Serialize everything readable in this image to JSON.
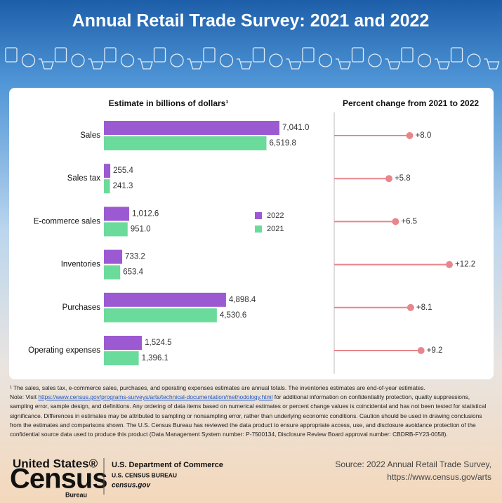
{
  "title": "Annual Retail Trade Survey: 2021 and 2022",
  "chart_data": [
    {
      "type": "bar",
      "orientation": "horizontal",
      "title": "Estimate in billions of dollars¹",
      "categories": [
        "Sales",
        "Sales tax",
        "E-commerce sales",
        "Inventories",
        "Purchases",
        "Operating expenses"
      ],
      "series": [
        {
          "name": "2022",
          "color": "#9c5ad2",
          "values": [
            7041.0,
            255.4,
            1012.6,
            733.2,
            4898.4,
            1524.5
          ],
          "value_labels": [
            "7,041.0",
            "255.4",
            "1,012.6",
            "733.2",
            "4,898.4",
            "1,524.5"
          ]
        },
        {
          "name": "2021",
          "color": "#6bdb9c",
          "values": [
            6519.8,
            241.3,
            951.0,
            653.4,
            4530.6,
            1396.1
          ],
          "value_labels": [
            "6,519.8",
            "241.3",
            "951.0",
            "653.4",
            "4,530.6",
            "1,396.1"
          ]
        }
      ],
      "legend": "center"
    },
    {
      "type": "lollipop",
      "title": "Percent change from 2021 to 2022",
      "color": "#e9858c",
      "values": [
        8.0,
        5.8,
        6.5,
        12.2,
        8.1,
        9.2
      ],
      "value_labels": [
        "+8.0",
        "+5.8",
        "+6.5",
        "+12.2",
        "+8.1",
        "+9.2"
      ]
    }
  ],
  "footnote": "¹ The sales, sales tax, e-commerce sales, purchases, and operating expenses estimates are annual totals. The inventories estimates are end-of-year estimates.",
  "note": {
    "before": "Note: Visit ",
    "link": "https://www.census.gov/programs-surveys/arts/technical-documentation/methodology.html",
    "after": " for additional information on confidentiality protection, quality suppressions, sampling error, sample design, and definitions. Any ordering of data items based on numerical estimates or percent change values is coincidental and has not been tested for statistical significance. Differences in estimates may be attributed to sampling or nonsampling error, rather than underlying economic conditions. Caution should be used in drawing conclusions from the estimates and comparisons shown. The U.S. Census Bureau has reviewed the data product to ensure appropriate access, use, and disclosure avoidance protection of the confidential source data used to produce this product (Data Management System number: P-7500134, Disclosure Review Board approval number: CBDRB-FY23-0058)."
  },
  "logo": {
    "name_top": "United States®",
    "name_main": "Census",
    "name_sub": "Bureau"
  },
  "agency": {
    "department": "U.S. Department of Commerce",
    "bureau": "U.S. CENSUS BUREAU",
    "site": "census.gov"
  },
  "source": [
    "Source: 2022 Annual Retail Trade Survey,",
    "https://www.census.gov/arts"
  ]
}
